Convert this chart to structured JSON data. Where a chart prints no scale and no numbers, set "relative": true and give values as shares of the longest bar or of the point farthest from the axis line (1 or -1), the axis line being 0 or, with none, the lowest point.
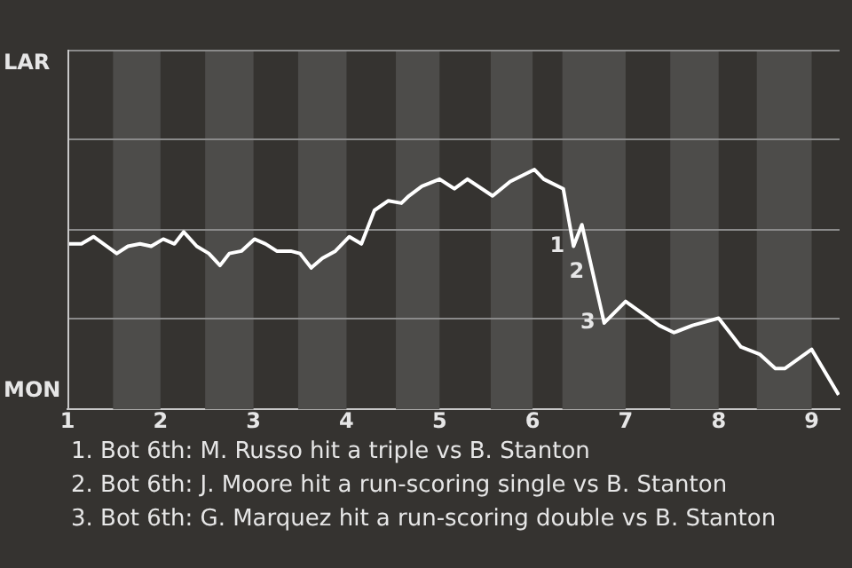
{
  "chart_data": {
    "type": "line",
    "x": [
      1.0,
      1.15,
      1.28,
      1.53,
      1.65,
      1.78,
      1.9,
      2.03,
      2.15,
      2.25,
      2.39,
      2.52,
      2.64,
      2.74,
      2.87,
      3.01,
      3.13,
      3.25,
      3.4,
      3.5,
      3.62,
      3.74,
      3.88,
      4.03,
      4.16,
      4.3,
      4.45,
      4.59,
      4.67,
      4.81,
      5.0,
      5.16,
      5.3,
      5.57,
      5.76,
      6.02,
      6.12,
      6.33,
      6.44,
      6.53,
      6.77,
      7.0,
      7.36,
      7.52,
      7.72,
      8.0,
      8.24,
      8.44,
      8.61,
      8.71,
      9.0,
      9.29
    ],
    "relative": true,
    "series": [
      {
        "color": "#ffffff",
        "values": [
          0.69,
          0.69,
          0.72,
          0.65,
          0.68,
          0.69,
          0.68,
          0.71,
          0.69,
          0.74,
          0.68,
          0.65,
          0.6,
          0.65,
          0.66,
          0.71,
          0.69,
          0.66,
          0.66,
          0.65,
          0.59,
          0.63,
          0.66,
          0.72,
          0.69,
          0.83,
          0.87,
          0.86,
          0.89,
          0.93,
          0.96,
          0.92,
          0.96,
          0.89,
          0.95,
          1,
          0.96,
          0.92,
          0.68,
          0.77,
          0.36,
          0.45,
          0.35,
          0.32,
          0.35,
          0.38,
          0.26,
          0.23,
          0.17,
          0.17,
          0.25,
          0.06
        ]
      }
    ],
    "xlim": [
      1,
      9.3
    ],
    "xticks": [
      1,
      2,
      3,
      4,
      5,
      6,
      7,
      8,
      9
    ],
    "ref_lines": [
      {
        "axis": "y",
        "value": 0.38,
        "color": "#8a8a8a"
      },
      {
        "axis": "y",
        "value": 0.75,
        "color": "#8a8a8a"
      },
      {
        "axis": "y",
        "value": 1.13,
        "color": "#8a8a8a"
      }
    ],
    "legend": false,
    "marker": "none",
    "line_style": "solid",
    "bands": [
      {
        "axis": "x",
        "from": 1.49,
        "to": 2.0,
        "color": "#4d4c4a"
      },
      {
        "axis": "x",
        "from": 2.48,
        "to": 3.0,
        "color": "#4d4c4a"
      },
      {
        "axis": "x",
        "from": 3.48,
        "to": 4.0,
        "color": "#4d4c4a"
      },
      {
        "axis": "x",
        "from": 4.53,
        "to": 5.0,
        "color": "#4d4c4a"
      },
      {
        "axis": "x",
        "from": 5.55,
        "to": 6.0,
        "color": "#4d4c4a"
      },
      {
        "axis": "x",
        "from": 6.32,
        "to": 7.0,
        "color": "#4d4c4a"
      },
      {
        "axis": "x",
        "from": 7.48,
        "to": 8.0,
        "color": "#4d4c4a"
      },
      {
        "axis": "x",
        "from": 8.41,
        "to": 9.0,
        "color": "#4d4c4a"
      }
    ],
    "annotations": [
      "LAR",
      "MON",
      {
        "text": "1",
        "x": 6.44,
        "y": 0.68
      },
      {
        "text": "2",
        "x": 6.65,
        "y": 0.57
      },
      {
        "text": "3",
        "x": 6.77,
        "y": 0.36
      },
      "1. Bot 6th: M. Russo hit a triple vs B. Stanton",
      "2. Bot 6th: J. Moore hit a run-scoring single vs B. Stanton",
      "3. Bot 6th: G. Marquez hit a run-scoring double vs B. Stanton"
    ]
  }
}
